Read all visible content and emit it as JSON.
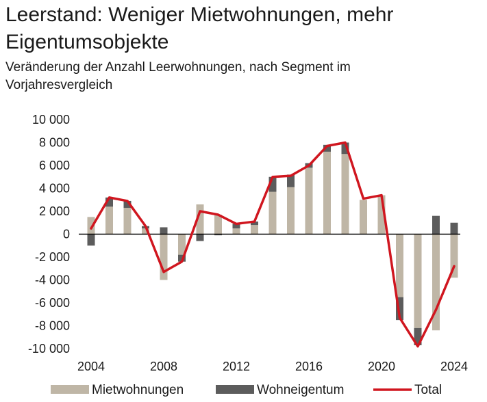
{
  "title_line1": "Leerstand: Weniger Mietwohnungen, mehr",
  "title_line2": "Eigentumsobjekte",
  "subtitle_line1": "Veränderung der Anzahl Leerwohnungen, nach Segment im",
  "subtitle_line2": "Vorjahresvergleich",
  "colors": {
    "miet": "#bfb6a6",
    "wohn": "#5c5c5c",
    "total": "#d0161f",
    "axis": "#000000"
  },
  "chart_data": {
    "type": "bar",
    "stacked": true,
    "years": [
      2004,
      2005,
      2006,
      2007,
      2008,
      2009,
      2010,
      2011,
      2012,
      2013,
      2014,
      2015,
      2016,
      2017,
      2018,
      2019,
      2020,
      2021,
      2022,
      2023,
      2024
    ],
    "series": [
      {
        "name": "Mietwohnungen",
        "type": "bar",
        "color": "#bfb6a6",
        "values": [
          1500,
          2400,
          2300,
          500,
          -4000,
          -1800,
          2600,
          1700,
          500,
          800,
          3700,
          4100,
          5800,
          7200,
          7000,
          3000,
          3400,
          -5500,
          -8200,
          -8400,
          -3800
        ]
      },
      {
        "name": "Wohneigentum",
        "type": "bar",
        "color": "#5c5c5c",
        "values": [
          -1000,
          800,
          600,
          200,
          600,
          -600,
          -600,
          -100,
          400,
          300,
          1300,
          1100,
          400,
          600,
          1000,
          0,
          0,
          -2000,
          -1500,
          1600,
          1000
        ]
      },
      {
        "name": "Total",
        "type": "line",
        "color": "#d0161f",
        "values": [
          500,
          3200,
          2900,
          700,
          -3300,
          -2400,
          2000,
          1700,
          900,
          1100,
          5000,
          5100,
          6000,
          7700,
          8000,
          3100,
          3400,
          -7300,
          -9800,
          -6600,
          -2800
        ]
      }
    ],
    "ylim": [
      -10000,
      10000
    ],
    "y_ticks": [
      10000,
      8000,
      6000,
      4000,
      2000,
      0,
      -2000,
      -4000,
      -6000,
      -8000,
      -10000
    ],
    "y_tick_labels": [
      "10 000",
      "8 000",
      "6 000",
      "4 000",
      "2 000",
      "0",
      "-2 000",
      "-4 000",
      "-6 000",
      "-8 000",
      "-10 000"
    ],
    "x_ticks": [
      2004,
      2008,
      2012,
      2016,
      2020,
      2024
    ],
    "x_tick_labels": [
      "2004",
      "2008",
      "2012",
      "2016",
      "2020",
      "2024"
    ],
    "xlabel": "",
    "ylabel": "",
    "grid": false,
    "legend_position": "bottom",
    "legend": [
      "Mietwohnungen",
      "Wohneigentum",
      "Total"
    ]
  }
}
